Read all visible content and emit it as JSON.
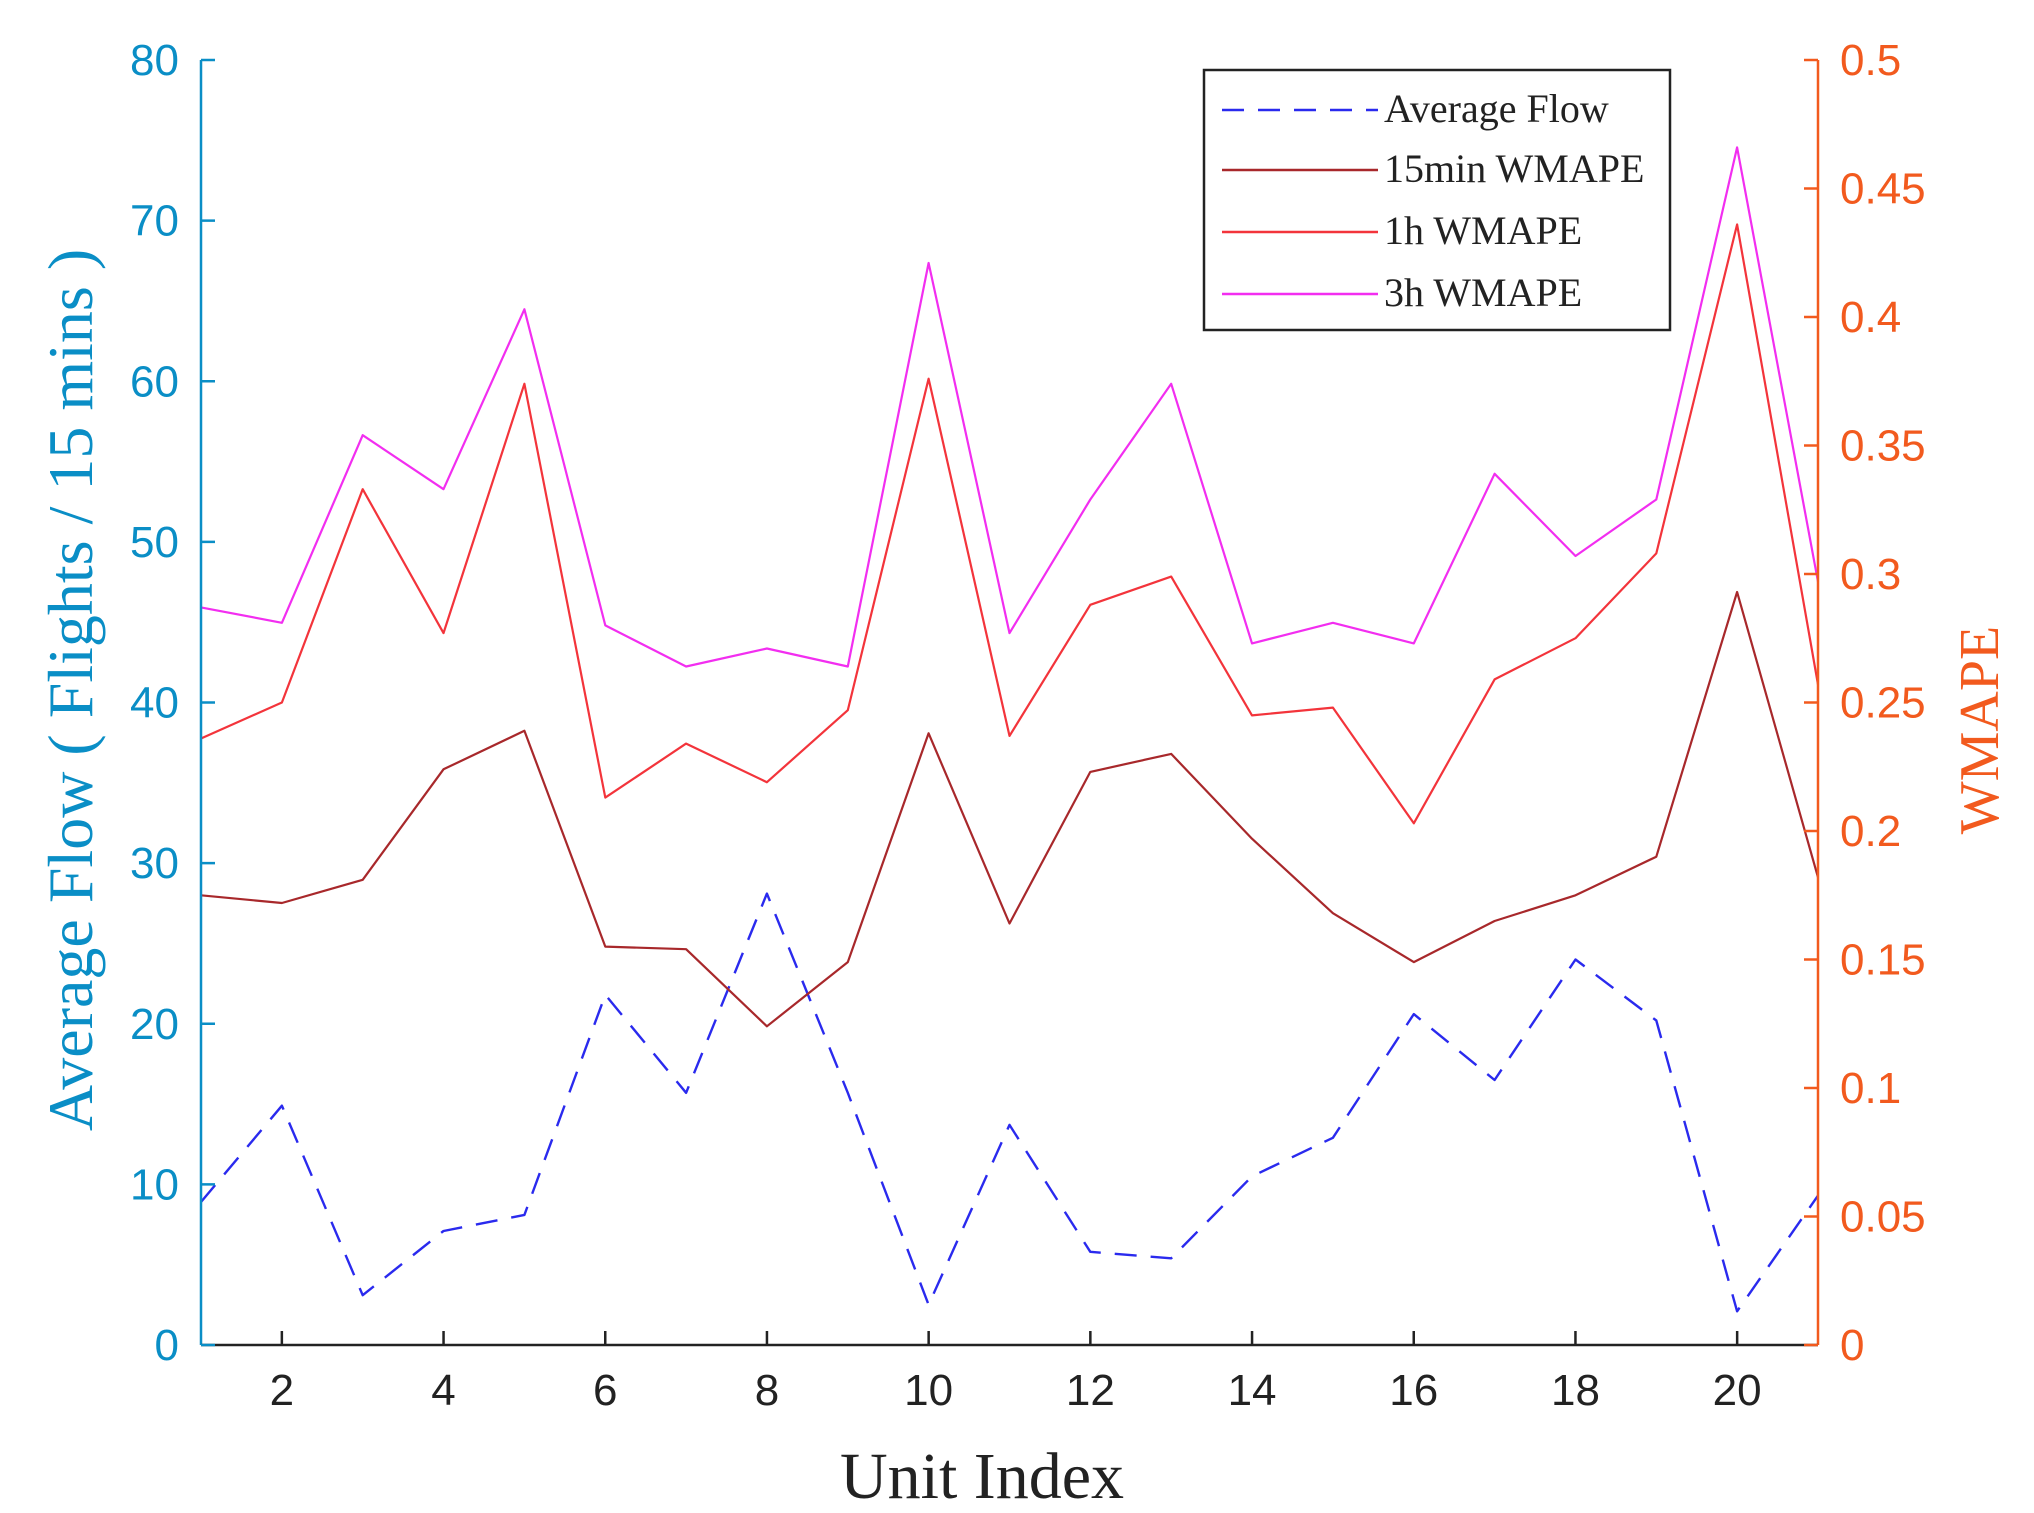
{
  "chart_data": {
    "type": "line",
    "title": "",
    "xlabel": "Unit Index",
    "ylabel_left": "Average Flow ( Flights / 15 mins )",
    "ylabel_right": "WMAPE",
    "xlim": [
      1,
      21
    ],
    "ylim_left": [
      0,
      80
    ],
    "ylim_right": [
      0,
      0.5
    ],
    "x": [
      1,
      2,
      3,
      4,
      5,
      6,
      7,
      8,
      9,
      10,
      11,
      12,
      13,
      14,
      15,
      16,
      17,
      18,
      19,
      20,
      21
    ],
    "x_ticks": [
      2,
      4,
      6,
      8,
      10,
      12,
      14,
      16,
      18,
      20
    ],
    "x_tick_labels": [
      "2",
      "4",
      "6",
      "8",
      "10",
      "12",
      "14",
      "16",
      "18",
      "20"
    ],
    "y_left_ticks": [
      0,
      10,
      20,
      30,
      40,
      50,
      60,
      70,
      80
    ],
    "y_left_tick_labels": [
      "0",
      "10",
      "20",
      "30",
      "40",
      "50",
      "60",
      "70",
      "80"
    ],
    "y_right_ticks": [
      0,
      0.05,
      0.1,
      0.15,
      0.2,
      0.25,
      0.3,
      0.35,
      0.4,
      0.45,
      0.5
    ],
    "y_right_tick_labels": [
      "0",
      "0.05",
      "0.1",
      "0.15",
      "0.2",
      "0.25",
      "0.3",
      "0.35",
      "0.4",
      "0.45",
      "0.5"
    ],
    "grid": false,
    "legend_position": "top-right",
    "series": [
      {
        "name": "Average Flow",
        "axis": "left",
        "style": "dashed",
        "color": "#2a2aee",
        "values": [
          8.9,
          14.9,
          3.1,
          7.1,
          8.1,
          21.8,
          15.7,
          28.1,
          15.7,
          2.5,
          13.7,
          5.8,
          5.4,
          10.5,
          12.9,
          20.6,
          16.5,
          24.0,
          20.2,
          2.1,
          9.3
        ]
      },
      {
        "name": "15min WMAPE",
        "axis": "right",
        "style": "solid",
        "color": "#a8282b",
        "values": [
          0.175,
          0.172,
          0.181,
          0.224,
          0.239,
          0.155,
          0.154,
          0.124,
          0.149,
          0.238,
          0.164,
          0.223,
          0.23,
          0.197,
          0.168,
          0.149,
          0.165,
          0.175,
          0.19,
          0.293,
          0.182
        ]
      },
      {
        "name": "1h WMAPE",
        "axis": "right",
        "style": "solid",
        "color": "#f3343b",
        "values": [
          0.236,
          0.25,
          0.333,
          0.277,
          0.374,
          0.213,
          0.234,
          0.219,
          0.247,
          0.376,
          0.237,
          0.288,
          0.299,
          0.245,
          0.248,
          0.203,
          0.259,
          0.275,
          0.308,
          0.436,
          0.257
        ]
      },
      {
        "name": "3h WMAPE",
        "axis": "right",
        "style": "solid",
        "color": "#f22ef0",
        "values": [
          0.287,
          0.281,
          0.354,
          0.333,
          0.403,
          0.28,
          0.264,
          0.271,
          0.264,
          0.421,
          0.277,
          0.329,
          0.374,
          0.273,
          0.281,
          0.273,
          0.339,
          0.307,
          0.329,
          0.466,
          0.297
        ]
      }
    ]
  },
  "colors": {
    "left_axis": "#0a8ec6",
    "right_axis": "#f25a1e",
    "x_axis": "#222222"
  }
}
